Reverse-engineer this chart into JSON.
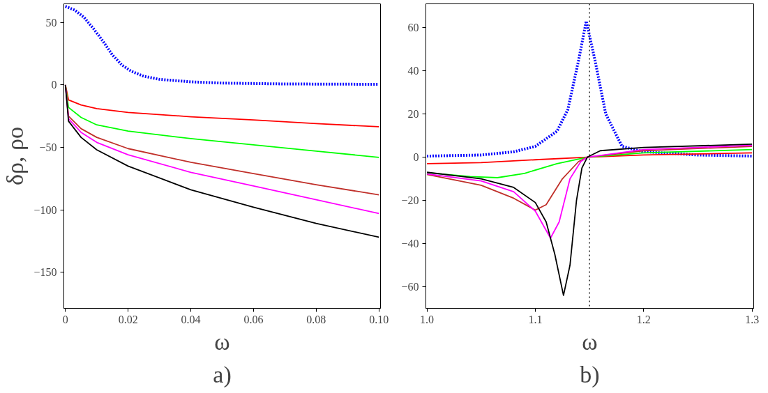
{
  "chart_data": [
    {
      "type": "line",
      "xlabel": "ω",
      "ylabel": "δρ, ρo",
      "annotations": [
        "a)"
      ],
      "xlim": [
        -0.0005,
        0.1005
      ],
      "ylim": [
        -179,
        65
      ],
      "xticks": [
        0,
        0.02,
        0.04,
        0.06,
        0.08,
        {
          "value": 0.1,
          "label": "0.10"
        }
      ],
      "yticks": [
        -150,
        -100,
        -50,
        0,
        50
      ],
      "grid": false,
      "series": [
        {
          "color": "#0000ff",
          "line_style": "dotted",
          "x": [
            0,
            0.003,
            0.006,
            0.009,
            0.012,
            0.015,
            0.018,
            0.021,
            0.025,
            0.03,
            0.04,
            0.05,
            0.07,
            0.1
          ],
          "values": [
            63,
            60,
            54,
            45,
            35,
            24,
            16,
            11,
            7,
            4.5,
            2.5,
            1.5,
            0.8,
            0.5
          ]
        },
        {
          "color": "#ff0000",
          "x": [
            0,
            0.001,
            0.005,
            0.01,
            0.02,
            0.04,
            0.06,
            0.08,
            0.1
          ],
          "values": [
            0,
            -12,
            -16,
            -19,
            -22,
            -25.5,
            -28,
            -31,
            -33.5
          ]
        },
        {
          "color": "#00ff00",
          "x": [
            0,
            0.001,
            0.005,
            0.01,
            0.02,
            0.04,
            0.06,
            0.08,
            0.1
          ],
          "values": [
            0,
            -18,
            -26,
            -32,
            -37,
            -43,
            -48,
            -53,
            -58
          ]
        },
        {
          "color": "#c0302a",
          "x": [
            0,
            0.001,
            0.005,
            0.01,
            0.02,
            0.04,
            0.06,
            0.08,
            0.1
          ],
          "values": [
            0,
            -25,
            -35,
            -42,
            -51,
            -62,
            -71,
            -80,
            -88
          ]
        },
        {
          "color": "#ff00ff",
          "x": [
            0,
            0.001,
            0.005,
            0.01,
            0.02,
            0.04,
            0.06,
            0.08,
            0.1
          ],
          "values": [
            0,
            -27,
            -38,
            -46,
            -56,
            -70,
            -81,
            -92,
            -103
          ]
        },
        {
          "color": "#000000",
          "x": [
            0,
            0.001,
            0.005,
            0.01,
            0.02,
            0.04,
            0.06,
            0.08,
            0.1
          ],
          "values": [
            0,
            -29,
            -42,
            -52,
            -65,
            -84,
            -98,
            -111,
            -122
          ]
        }
      ]
    },
    {
      "type": "line",
      "xlabel": "ω",
      "annotations": [
        "b)"
      ],
      "xlim": [
        0.999,
        1.3015
      ],
      "ylim": [
        -70,
        71
      ],
      "xticks": [
        {
          "value": 1.0,
          "label": "1.0"
        },
        1.1,
        1.2,
        1.3
      ],
      "yticks": [
        -60,
        -40,
        -20,
        0,
        20,
        40,
        60
      ],
      "grid": false,
      "ref_lines": [
        {
          "axis": "x",
          "value": 1.15,
          "color": "#000000",
          "line_style": "dotted"
        }
      ],
      "series": [
        {
          "color": "#0000ff",
          "line_style": "dotted",
          "x": [
            1.0,
            1.05,
            1.08,
            1.1,
            1.12,
            1.13,
            1.14,
            1.147,
            1.155,
            1.165,
            1.18,
            1.2,
            1.25,
            1.3
          ],
          "values": [
            0.5,
            1,
            2.5,
            5,
            12,
            22,
            45,
            63,
            45,
            20,
            5,
            2.5,
            1,
            0.5
          ]
        },
        {
          "color": "#ff0000",
          "x": [
            1.0,
            1.05,
            1.1,
            1.148,
            1.2,
            1.3
          ],
          "values": [
            -3,
            -2.5,
            -1.2,
            0,
            1,
            2
          ]
        },
        {
          "color": "#00ff00",
          "x": [
            1.0,
            1.04,
            1.065,
            1.09,
            1.12,
            1.148,
            1.2,
            1.3
          ],
          "values": [
            -7.2,
            -9,
            -9.5,
            -7.5,
            -3,
            0,
            2,
            3.5
          ]
        },
        {
          "color": "#c0302a",
          "x": [
            1.0,
            1.05,
            1.08,
            1.1,
            1.11,
            1.125,
            1.14,
            1.148,
            1.2,
            1.3
          ],
          "values": [
            -8,
            -13,
            -19,
            -24.5,
            -22,
            -10,
            -2,
            0,
            3,
            5
          ]
        },
        {
          "color": "#ff00ff",
          "x": [
            1.0,
            1.05,
            1.08,
            1.1,
            1.114,
            1.122,
            1.132,
            1.142,
            1.148,
            1.2,
            1.3
          ],
          "values": [
            -7.8,
            -11,
            -16,
            -25,
            -37.5,
            -30,
            -10,
            -2,
            0,
            3.5,
            5.5
          ]
        },
        {
          "color": "#000000",
          "x": [
            1.0,
            1.05,
            1.08,
            1.1,
            1.11,
            1.118,
            1.126,
            1.132,
            1.138,
            1.143,
            1.148,
            1.16,
            1.2,
            1.3
          ],
          "values": [
            -7,
            -10,
            -14,
            -21,
            -30,
            -45,
            -64,
            -50,
            -20,
            -5,
            0,
            3,
            4.5,
            6
          ]
        }
      ]
    }
  ]
}
